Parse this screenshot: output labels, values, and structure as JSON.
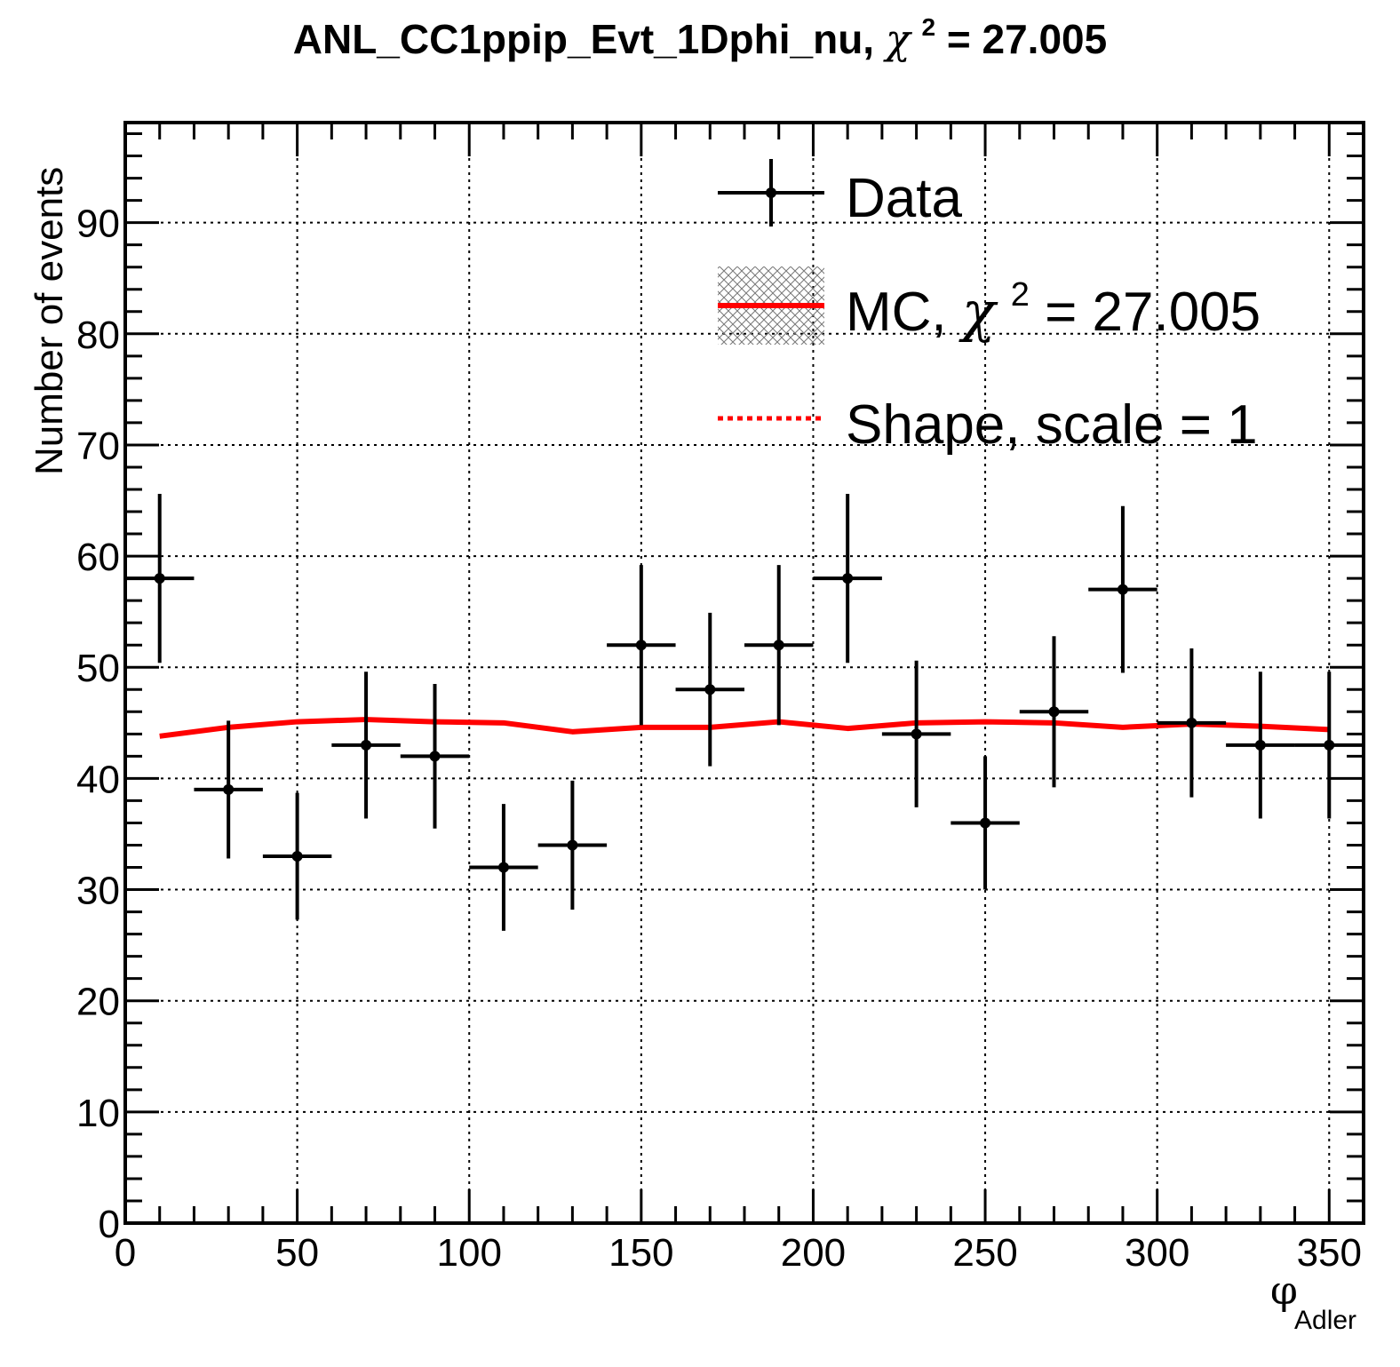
{
  "chart_data": {
    "type": "scatter",
    "title": "ANL_CC1ppip_Evt_1Dphi_nu, χ² = 27.005",
    "title_parts": {
      "prefix": "ANL_CC1ppip_Evt_1Dphi_nu,",
      "chi": "χ",
      "sup": "2",
      "suffix": "= 27.005"
    },
    "xlabel": "φ",
    "xlabel_sub": "Adler",
    "ylabel": "Number of events",
    "xlim": [
      0,
      360
    ],
    "ylim": [
      0,
      99
    ],
    "x_ticks": [
      0,
      50,
      100,
      150,
      200,
      250,
      300,
      350
    ],
    "y_ticks": [
      0,
      10,
      20,
      30,
      40,
      50,
      60,
      70,
      80,
      90
    ],
    "x_tick_labels": [
      "0",
      "50",
      "100",
      "150",
      "200",
      "250",
      "300",
      "350"
    ],
    "y_tick_labels": [
      "0",
      "10",
      "20",
      "30",
      "40",
      "50",
      "60",
      "70",
      "80",
      "90"
    ],
    "grid": true,
    "legend_position": "top-right",
    "legend": {
      "data": "Data",
      "mc_prefix": "MC,",
      "mc_chi": "χ",
      "mc_sup": "2",
      "mc_suffix": "= 27.005",
      "shape": "Shape, scale = 1"
    },
    "colors": {
      "data": "#000000",
      "mc": "#ff0000",
      "shape": "#ff0000"
    },
    "series": [
      {
        "name": "Data",
        "type": "errorbar",
        "bin_width": 20,
        "x": [
          10,
          30,
          50,
          70,
          90,
          110,
          130,
          150,
          170,
          190,
          210,
          230,
          250,
          270,
          290,
          310,
          330,
          350
        ],
        "y": [
          58,
          39,
          33,
          43,
          42,
          32,
          34,
          52,
          48,
          52,
          58,
          44,
          36,
          46,
          57,
          45,
          43,
          43
        ],
        "yerr": [
          7.6,
          6.2,
          5.7,
          6.6,
          6.5,
          5.7,
          5.8,
          7.2,
          6.9,
          7.2,
          7.6,
          6.6,
          6.0,
          6.8,
          7.5,
          6.7,
          6.6,
          6.6
        ]
      },
      {
        "name": "MC, χ² = 27.005",
        "type": "line",
        "x": [
          10,
          30,
          50,
          70,
          90,
          110,
          130,
          150,
          170,
          190,
          210,
          230,
          250,
          270,
          290,
          310,
          330,
          350
        ],
        "y": [
          43.8,
          44.6,
          45.1,
          45.3,
          45.1,
          45.0,
          44.2,
          44.6,
          44.6,
          45.1,
          44.5,
          45.0,
          45.1,
          45.0,
          44.6,
          44.9,
          44.7,
          44.4
        ]
      }
    ]
  }
}
